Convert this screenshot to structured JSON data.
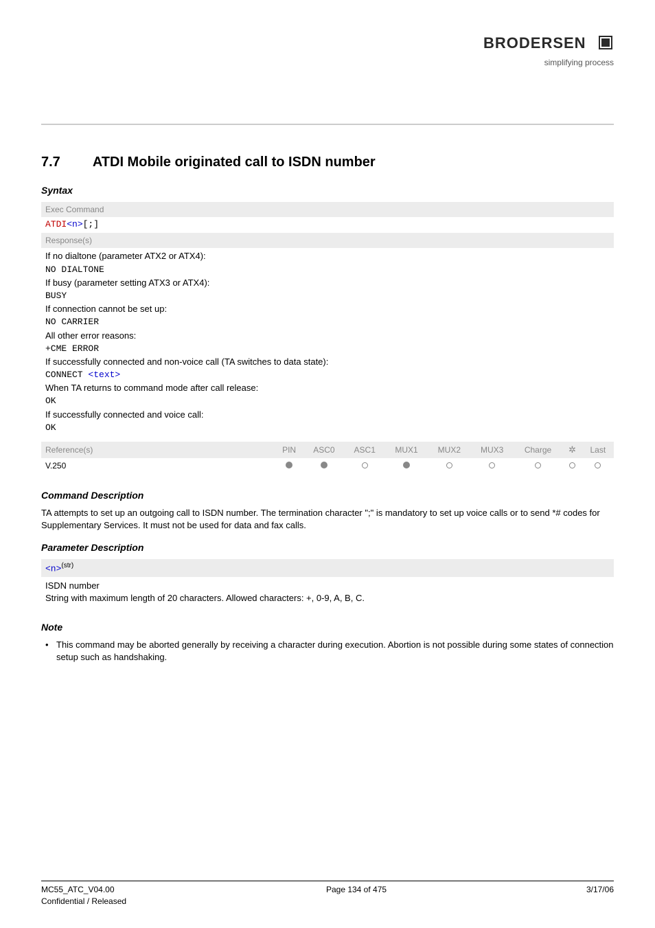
{
  "branding": {
    "logo_text": "BRODERSEN",
    "tagline": "simplifying process"
  },
  "section": {
    "number": "7.7",
    "title": "ATDI   Mobile originated call to ISDN number"
  },
  "syntax": {
    "heading": "Syntax",
    "exec_label": "Exec Command",
    "exec_cmd_prefix": "ATDI",
    "exec_cmd_param": "<n>",
    "exec_cmd_suffix": "[;]",
    "responses_label": "Response(s)",
    "responses": [
      {
        "text": "If no dialtone (parameter ATX2 or ATX4):",
        "mono": false
      },
      {
        "text": "NO DIALTONE",
        "mono": true
      },
      {
        "text": "If busy (parameter setting ATX3 or ATX4):",
        "mono": false
      },
      {
        "text": "BUSY",
        "mono": true
      },
      {
        "text": "If connection cannot be set up:",
        "mono": false
      },
      {
        "text": "NO CARRIER",
        "mono": true
      },
      {
        "text": "All other error reasons:",
        "mono": false
      },
      {
        "text": "+CME ERROR",
        "mono": true
      },
      {
        "text": "If successfully connected and non-voice call (TA switches to data state):",
        "mono": false
      },
      {
        "text": "CONNECT ",
        "mono": true,
        "after_blue": "<text>"
      },
      {
        "text": "When TA returns to command mode after call release:",
        "mono": false
      },
      {
        "text": "OK",
        "mono": true
      },
      {
        "text": "If successfully connected and voice call:",
        "mono": false
      },
      {
        "text": "OK",
        "mono": true
      }
    ]
  },
  "ref_table": {
    "ref_label": "Reference(s)",
    "cols": [
      "PIN",
      "ASC0",
      "ASC1",
      "MUX1",
      "MUX2",
      "MUX3",
      "Charge",
      "air",
      "Last"
    ],
    "row_label": "V.250",
    "row_values": [
      "filled",
      "filled",
      "empty",
      "filled",
      "empty",
      "empty",
      "empty",
      "empty",
      "empty"
    ],
    "colors": {
      "filled": "#888888",
      "empty_border": "#888888",
      "header_bg": "#ececec",
      "header_fg": "#888888"
    }
  },
  "command_desc": {
    "heading": "Command Description",
    "body": "TA attempts to set up an outgoing call to ISDN number. The termination character \";\" is mandatory to set up voice calls or to send *# codes for Supplementary Services. It must not be used for data and fax calls."
  },
  "param_desc": {
    "heading": "Parameter Description",
    "param_name": "<n>",
    "param_sup": "(str)",
    "isdn_label": "ISDN number",
    "isdn_body": "String with maximum length of 20 characters. Allowed characters: +, 0-9, A, B, C."
  },
  "note": {
    "heading": "Note",
    "items": [
      "This command may be aborted generally by receiving a character during execution. Abortion is not possible during some states of connection setup such as handshaking."
    ]
  },
  "footer": {
    "left1": "MC55_ATC_V04.00",
    "left2": "Confidential / Released",
    "center": "Page 134 of 475",
    "right": "3/17/06"
  }
}
